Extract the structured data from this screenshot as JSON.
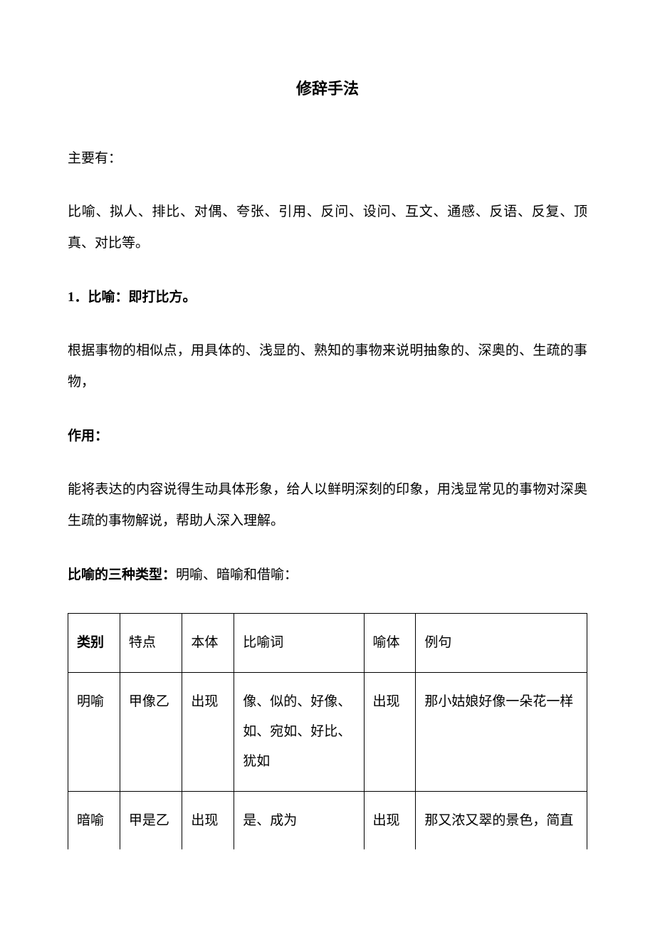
{
  "title": "修辞手法",
  "intro_label": "主要有：",
  "intro_list": "比喻、拟人、排比、对偶、夸张、引用、反问、设问、互文、通感、反语、反复、顶真、对比等。",
  "section1_heading": "1．比喻：即打比方。",
  "section1_desc": "根据事物的相似点，用具体的、浅显的、熟知的事物来说明抽象的、深奥的、生疏的事物，",
  "effect_label": "作用：",
  "effect_desc": "能将表达的内容说得生动具体形象，给人以鲜明深刻的印象，用浅显常见的事物对深奥生疏的事物解说，帮助人深入理解。",
  "types_label": "比喻的三种类型：",
  "types_desc": "明喻、暗喻和借喻：",
  "table": {
    "columns": [
      "类别",
      "特点",
      "本体",
      "比喻词",
      "喻体",
      "例句"
    ],
    "rows": [
      [
        "明喻",
        "甲像乙",
        "出现",
        "像、似的、好像、如、宛如、好比、犹如",
        "出现",
        "那小姑娘好像一朵花一样"
      ],
      [
        "暗喻",
        "甲是乙",
        "出现",
        "是、成为",
        "出现",
        "那又浓又翠的景色，简直"
      ]
    ],
    "column_widths": [
      "10%",
      "12%",
      "10%",
      "25%",
      "10%",
      "33%"
    ],
    "border_color": "#000000",
    "cell_padding": "20px 12px",
    "font_size": 19
  },
  "colors": {
    "text": "#000000",
    "background": "#ffffff",
    "border": "#000000"
  },
  "typography": {
    "body_font_size": 19,
    "title_font_size": 22,
    "line_height": 2.3,
    "font_family": "SimSun"
  }
}
